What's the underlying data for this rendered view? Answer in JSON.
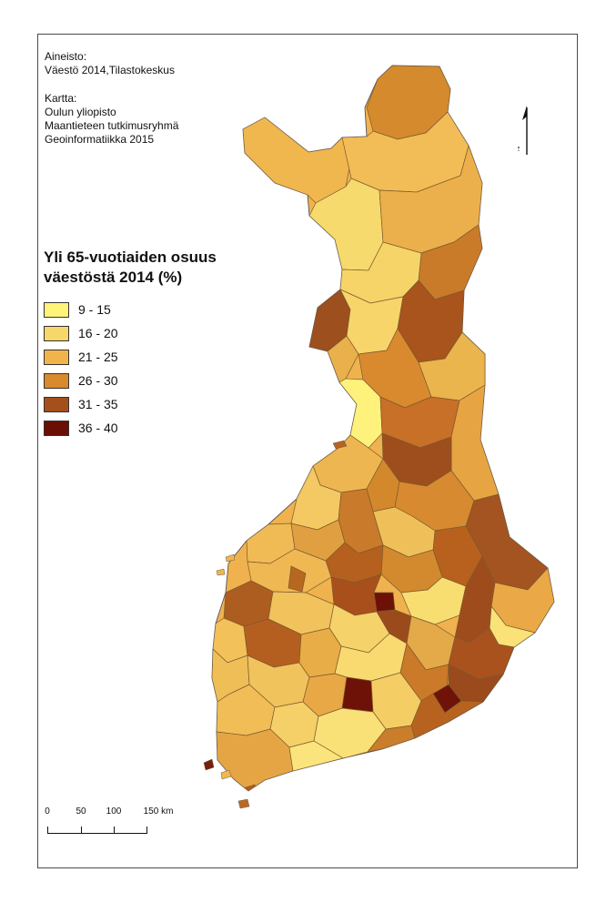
{
  "credits": {
    "source_heading": "Aineisto:",
    "source_text": "Väestö 2014,Tilastokeskus",
    "map_heading": "Kartta:",
    "map_line1": "Oulun yliopisto",
    "map_line2": "Maantieteen tutkimusryhmä",
    "map_line3": "Geoinformatiikka 2015"
  },
  "legend": {
    "title_line1": "Yli 65-vuotiaiden osuus",
    "title_line2": "väestöstä 2014 (%)",
    "classes": [
      {
        "label": "9 - 15",
        "color": "#fff47a"
      },
      {
        "label": "16 - 20",
        "color": "#f7d66a"
      },
      {
        "label": "21 - 25",
        "color": "#f1b44a"
      },
      {
        "label": "26 - 30",
        "color": "#d88a2c"
      },
      {
        "label": "31 - 35",
        "color": "#a4501c"
      },
      {
        "label": "36 - 40",
        "color": "#6b0f05"
      }
    ]
  },
  "north_arrow": {
    "label": "N"
  },
  "scale": {
    "labels": [
      "0",
      "50",
      "100",
      "150 km"
    ]
  }
}
